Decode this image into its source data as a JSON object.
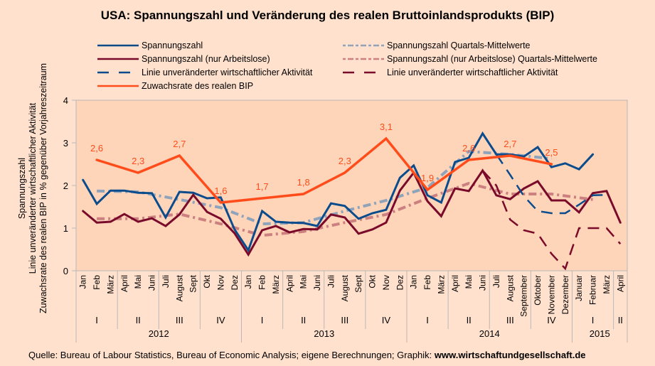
{
  "chart_data": {
    "type": "line",
    "title": "USA: Spannungszahl und Veränderung des realen Bruttoinlandsprodukts (BIP)",
    "ylabel_lines": [
      "Spannungszahl",
      "Linie unveränderter wirtschaftlicher Aktivität",
      "Zuwachsrate des realen BIP in % gegenüber Vorjahreszeitraum"
    ],
    "ylim": [
      0,
      4
    ],
    "yticks": [
      "0",
      "1",
      "2",
      "3",
      "4"
    ],
    "grid": false,
    "legend_position": "top",
    "months": [
      "Jan",
      "Feb",
      "März",
      "April",
      "Mai",
      "Juni",
      "Juli",
      "August",
      "Sept",
      "Okt",
      "Nov",
      "Dez",
      "Jan",
      "Feb",
      "März",
      "April",
      "Mai",
      "Juni",
      "Juli",
      "August",
      "Sept",
      "Okt",
      "Nov",
      "Dez",
      "Jan",
      "Feb",
      "März",
      "April",
      "Mai",
      "Juni",
      "Juli",
      "August",
      "September",
      "Oktober",
      "November",
      "Dezember",
      "Januar",
      "Februar",
      "März",
      "April"
    ],
    "quarters": [
      {
        "label": "I",
        "span": 3
      },
      {
        "label": "II",
        "span": 3
      },
      {
        "label": "III",
        "span": 3
      },
      {
        "label": "IV",
        "span": 3
      },
      {
        "label": "I",
        "span": 3
      },
      {
        "label": "II",
        "span": 3
      },
      {
        "label": "III",
        "span": 3
      },
      {
        "label": "IV",
        "span": 3
      },
      {
        "label": "I",
        "span": 3
      },
      {
        "label": "II",
        "span": 3
      },
      {
        "label": "III",
        "span": 3
      },
      {
        "label": "IV",
        "span": 3
      },
      {
        "label": "I",
        "span": 3
      },
      {
        "label": "II",
        "span": 1
      }
    ],
    "years": [
      {
        "label": "2012",
        "span": 12
      },
      {
        "label": "2013",
        "span": 12
      },
      {
        "label": "2014",
        "span": 12
      },
      {
        "label": "2015",
        "span": 4
      }
    ],
    "series": [
      {
        "name": "Spannungszahl",
        "color": "#0B4C8C",
        "style": "solid",
        "width": 3,
        "values": [
          2.13,
          1.57,
          1.88,
          1.88,
          1.83,
          1.82,
          1.25,
          1.85,
          1.83,
          1.7,
          1.72,
          0.97,
          0.48,
          1.4,
          1.15,
          1.13,
          1.12,
          1.05,
          1.58,
          1.52,
          1.22,
          1.35,
          1.43,
          2.18,
          2.47,
          1.77,
          1.6,
          2.55,
          2.65,
          3.22,
          2.73,
          2.73,
          2.68,
          2.9,
          2.43,
          2.52,
          2.38,
          2.73,
          null,
          null
        ]
      },
      {
        "name": "Spannungszahl (nur Arbeitslose)",
        "color": "#7A0A2A",
        "style": "solid",
        "width": 3,
        "values": [
          1.4,
          1.13,
          1.15,
          1.33,
          1.15,
          1.23,
          1.05,
          1.32,
          1.78,
          1.38,
          1.22,
          0.88,
          0.38,
          0.95,
          1.05,
          0.9,
          0.98,
          0.97,
          1.32,
          1.25,
          0.87,
          0.97,
          1.13,
          1.88,
          2.3,
          1.63,
          1.28,
          1.93,
          1.87,
          2.35,
          1.77,
          1.68,
          1.93,
          2.1,
          1.65,
          1.65,
          1.37,
          1.82,
          1.87,
          1.13
        ]
      },
      {
        "name": "Linie unveränderter wirtschaftlicher Aktivität",
        "color": "#0B4C8C",
        "style": "dashed",
        "width": 2.5,
        "values": [
          null,
          null,
          null,
          null,
          null,
          null,
          null,
          null,
          null,
          null,
          null,
          null,
          null,
          null,
          null,
          null,
          null,
          null,
          null,
          null,
          null,
          null,
          null,
          null,
          null,
          null,
          null,
          null,
          null,
          null,
          2.73,
          2.25,
          1.75,
          1.4,
          1.35,
          1.35,
          1.55,
          1.77,
          1.78,
          null
        ]
      },
      {
        "name": "Linie unveränderter wirtschaftlicher Aktivität",
        "color": "#7A0A2A",
        "style": "dashed",
        "width": 2.5,
        "values": [
          null,
          null,
          null,
          null,
          null,
          null,
          null,
          null,
          null,
          null,
          null,
          null,
          null,
          null,
          null,
          null,
          null,
          null,
          null,
          null,
          null,
          null,
          null,
          null,
          null,
          null,
          null,
          null,
          null,
          2.35,
          2.0,
          1.2,
          0.95,
          0.87,
          0.4,
          0.05,
          1.0,
          1.0,
          1.0,
          0.63
        ]
      },
      {
        "name": "Zuwachsrate des realen BIP",
        "color": "#FF4C1A",
        "style": "solid",
        "width": 3.5,
        "month_index": [
          1,
          4,
          7,
          10,
          13,
          16,
          19,
          22,
          25,
          28,
          31,
          34
        ],
        "values": [
          2.6,
          2.3,
          2.7,
          1.6,
          1.7,
          1.8,
          2.3,
          3.1,
          1.9,
          2.6,
          2.7,
          2.5
        ],
        "labels": [
          "2,6",
          "2,3",
          "2,7",
          "1,6",
          "1,7",
          "1,8",
          "2,3",
          "3,1",
          "1,9",
          "2,6",
          "2,7",
          "2,5"
        ]
      },
      {
        "name": "Spannungszahl Quartals-Mittelwerte",
        "color": "#8FA3BB",
        "style": "dashdot",
        "width": 4,
        "month_index": [
          1,
          4,
          7,
          10,
          13,
          16,
          19,
          22,
          25,
          28,
          31,
          34
        ],
        "values": [
          1.87,
          1.85,
          1.67,
          1.48,
          1.1,
          1.13,
          1.4,
          1.65,
          1.95,
          2.8,
          2.73,
          2.63
        ]
      },
      {
        "name": "Spannungszahl (nur Arbeitslose) Quartals-Mittelwerte",
        "color": "#CC8080",
        "style": "dashdot",
        "width": 4,
        "month_index": [
          1,
          4,
          7,
          10,
          13,
          16,
          19,
          22,
          25,
          28,
          31,
          34,
          37
        ],
        "values": [
          1.22,
          1.22,
          1.33,
          1.1,
          0.83,
          0.92,
          1.13,
          1.32,
          1.7,
          2.05,
          1.8,
          1.8,
          1.67
        ]
      }
    ],
    "legend": [
      {
        "label": "Spannungszahl",
        "series": 0
      },
      {
        "label": "Spannungszahl (nur Arbeitslose)",
        "series": 1
      },
      {
        "label": "Linie unveränderter wirtschaftlicher Aktivität",
        "series": 2
      },
      {
        "label": "Zuwachsrate des realen BIP",
        "series": 4
      },
      {
        "label": "Spannungszahl Quartals-Mittelwerte",
        "series": 5
      },
      {
        "label": "Spannungszahl (nur Arbeitslose) Quartals-Mittelwerte",
        "series": 6
      },
      {
        "label": "Linie unveränderter wirtschaftlicher Aktivität",
        "series": 3
      }
    ]
  },
  "source_prefix": "Quelle: Bureau of Labour Statistics, Bureau of Economic Analysis; eigene Berechnungen; Graphik: ",
  "source_site": "www.wirtschaftundgesellschaft.de"
}
